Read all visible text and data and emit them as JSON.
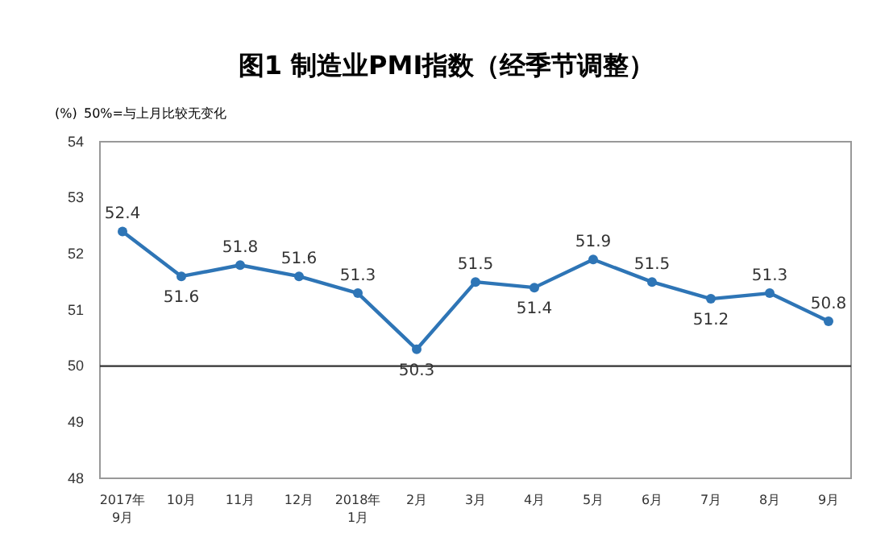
{
  "chart_data": {
    "type": "line",
    "title": "图1 制造业PMI指数（经季节调整）",
    "ylabel": "(%)",
    "annotations": [
      "50%=与上月比较无变化"
    ],
    "categories": [
      "2017年\n9月",
      "10月",
      "11月",
      "12月",
      "2018年\n1月",
      "2月",
      "3月",
      "4月",
      "5月",
      "6月",
      "7月",
      "8月",
      "9月"
    ],
    "series": [
      {
        "color": "#2e75b6",
        "values": [
          52.4,
          51.6,
          51.8,
          51.6,
          51.3,
          50.3,
          51.5,
          51.4,
          51.9,
          51.5,
          51.2,
          51.3,
          50.8
        ]
      }
    ],
    "ylim": [
      48,
      54
    ],
    "yticks": [
      48,
      49,
      50,
      51,
      52,
      53,
      54
    ],
    "ref_lines": [
      {
        "axis": "y",
        "value": 50,
        "color": "#333333"
      }
    ],
    "marker": "circle",
    "data_labels": true
  }
}
